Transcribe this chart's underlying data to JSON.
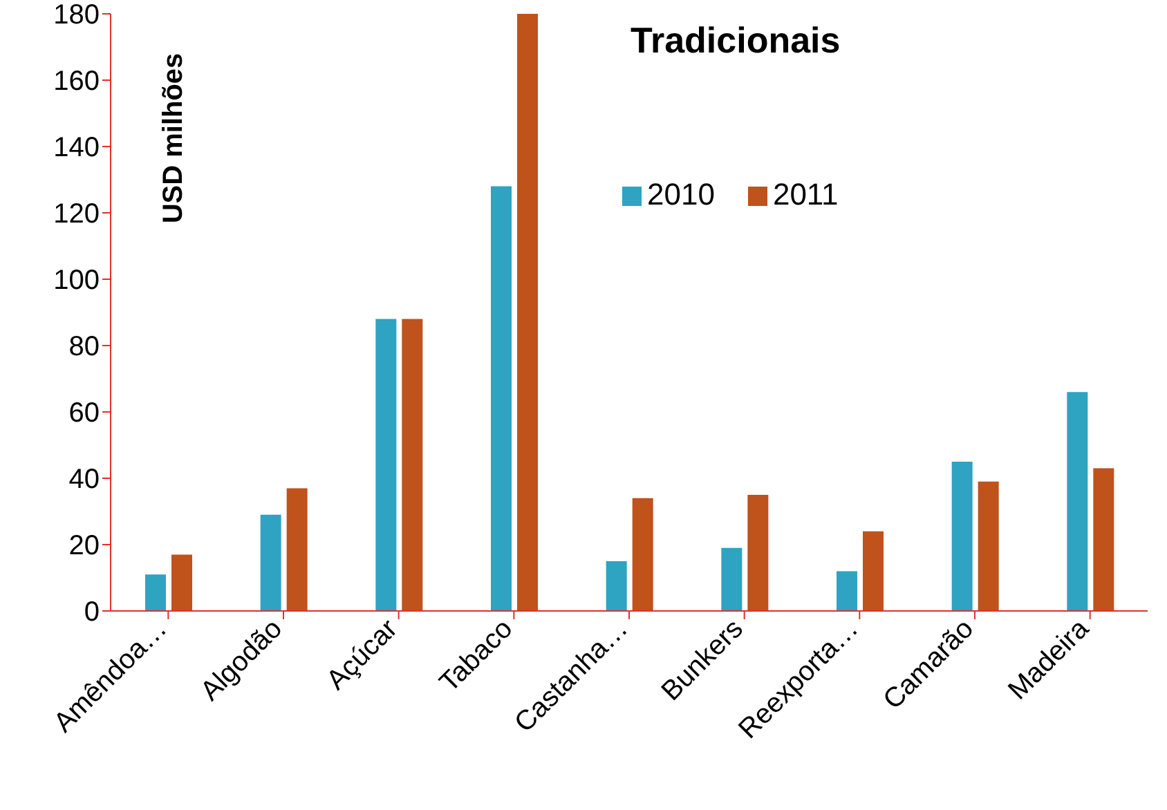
{
  "chart_data": {
    "type": "bar",
    "title": "Tradicionais",
    "ylabel": "USD milhões",
    "categories": [
      "Amêndoa…",
      "Algodão",
      "Açúcar",
      "Tabaco",
      "Castanha…",
      "Bunkers",
      "Reexporta…",
      "Camarão",
      "Madeira"
    ],
    "series": [
      {
        "name": "2010",
        "color": "#2fa3c2",
        "values": [
          11,
          29,
          88,
          128,
          15,
          19,
          12,
          45,
          66
        ]
      },
      {
        "name": "2011",
        "color": "#c0521c",
        "values": [
          17,
          37,
          88,
          180,
          34,
          35,
          24,
          39,
          43
        ]
      }
    ],
    "ylim": [
      0,
      180
    ],
    "yticks": [
      0,
      20,
      40,
      60,
      80,
      100,
      120,
      140,
      160,
      180
    ],
    "grid": false,
    "legend": "top right"
  }
}
